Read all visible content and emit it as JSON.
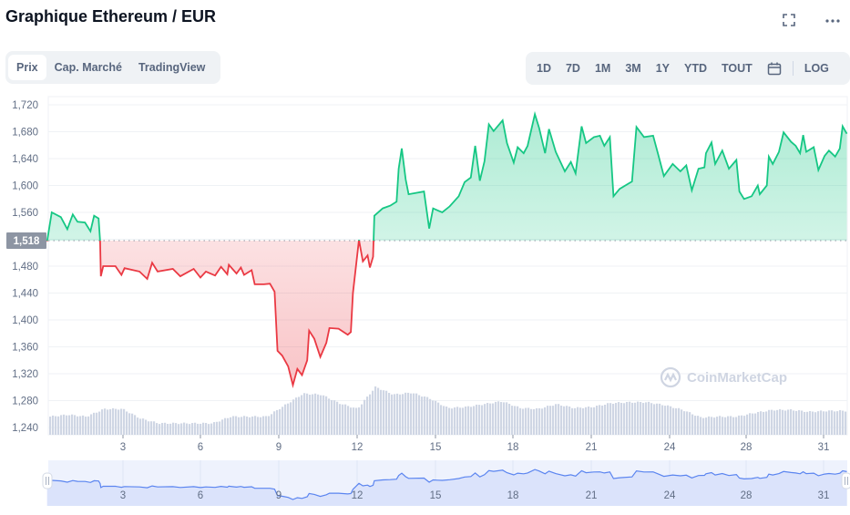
{
  "header": {
    "title": "Graphique Ethereum / EUR",
    "icons": [
      "fullscreen-icon",
      "more-icon"
    ]
  },
  "tabs": [
    {
      "label": "Prix",
      "active": true
    },
    {
      "label": "Cap. Marché"
    },
    {
      "label": "TradingView"
    }
  ],
  "ranges": [
    "1D",
    "7D",
    "1M",
    "3M",
    "1Y",
    "YTD",
    "TOUT"
  ],
  "log_label": "LOG",
  "watermark": "CoinMarketCap",
  "colors": {
    "up": "#16c784",
    "down": "#ea3943",
    "volume": "#cfd6e4",
    "navigator_line": "#5b85f0",
    "navigator_fill": "#dbe3fb",
    "price_label_bg": "#8d95a3"
  },
  "chart_data": {
    "type": "line",
    "title": "",
    "reference_price": 1518,
    "reference_label": "1,518",
    "ylim": [
      1240,
      1720
    ],
    "yticks": [
      1240,
      1280,
      1320,
      1360,
      1400,
      1440,
      1480,
      1520,
      1560,
      1600,
      1640,
      1680,
      1720
    ],
    "ytick_labels": [
      "1,240",
      "1,280",
      "1,320",
      "1,360",
      "1,400",
      "1,440",
      "1,480",
      "",
      "1,560",
      "1,600",
      "1,640",
      "1,680",
      "1,720"
    ],
    "xticks": [
      3,
      6,
      9,
      12,
      15,
      18,
      21,
      24,
      28,
      31
    ],
    "xtick_labels": [
      "3",
      "6",
      "9",
      "12",
      "15",
      "18",
      "21",
      "24",
      "28",
      "31"
    ],
    "grid": true,
    "price": [
      [
        0.08,
        1517
      ],
      [
        0.26,
        1560
      ],
      [
        0.61,
        1553
      ],
      [
        0.86,
        1535
      ],
      [
        1.07,
        1557
      ],
      [
        1.25,
        1546
      ],
      [
        1.54,
        1545
      ],
      [
        1.75,
        1532
      ],
      [
        1.89,
        1555
      ],
      [
        2.06,
        1551
      ],
      [
        2.12,
        1517
      ],
      [
        2.15,
        1465
      ],
      [
        2.24,
        1480
      ],
      [
        2.71,
        1480
      ],
      [
        2.94,
        1467
      ],
      [
        3.06,
        1477
      ],
      [
        3.64,
        1472
      ],
      [
        3.94,
        1461
      ],
      [
        4.13,
        1485
      ],
      [
        4.34,
        1472
      ],
      [
        4.93,
        1476
      ],
      [
        5.22,
        1465
      ],
      [
        5.74,
        1476
      ],
      [
        6.0,
        1463
      ],
      [
        6.21,
        1472
      ],
      [
        6.56,
        1466
      ],
      [
        6.79,
        1479
      ],
      [
        7.03,
        1468
      ],
      [
        7.09,
        1482
      ],
      [
        7.38,
        1469
      ],
      [
        7.55,
        1478
      ],
      [
        7.67,
        1467
      ],
      [
        7.96,
        1474
      ],
      [
        8.08,
        1453
      ],
      [
        8.43,
        1453
      ],
      [
        8.66,
        1454
      ],
      [
        8.84,
        1442
      ],
      [
        8.95,
        1354
      ],
      [
        9.13,
        1347
      ],
      [
        9.36,
        1331
      ],
      [
        9.54,
        1303
      ],
      [
        9.71,
        1327
      ],
      [
        9.89,
        1318
      ],
      [
        10.09,
        1340
      ],
      [
        10.16,
        1384
      ],
      [
        10.36,
        1372
      ],
      [
        10.59,
        1345
      ],
      [
        10.82,
        1366
      ],
      [
        10.94,
        1388
      ],
      [
        11.29,
        1387
      ],
      [
        11.64,
        1378
      ],
      [
        11.76,
        1382
      ],
      [
        11.84,
        1440
      ],
      [
        12.07,
        1519
      ],
      [
        12.22,
        1487
      ],
      [
        12.4,
        1496
      ],
      [
        12.49,
        1478
      ],
      [
        12.61,
        1494
      ],
      [
        12.66,
        1555
      ],
      [
        12.98,
        1566
      ],
      [
        13.27,
        1570
      ],
      [
        13.51,
        1576
      ],
      [
        13.59,
        1625
      ],
      [
        13.71,
        1655
      ],
      [
        13.86,
        1609
      ],
      [
        13.97,
        1587
      ],
      [
        14.56,
        1591
      ],
      [
        14.76,
        1536
      ],
      [
        14.91,
        1566
      ],
      [
        15.08,
        1563
      ],
      [
        15.26,
        1560
      ],
      [
        15.55,
        1569
      ],
      [
        15.9,
        1584
      ],
      [
        16.13,
        1605
      ],
      [
        16.37,
        1612
      ],
      [
        16.54,
        1659
      ],
      [
        16.72,
        1607
      ],
      [
        16.9,
        1636
      ],
      [
        17.07,
        1691
      ],
      [
        17.25,
        1681
      ],
      [
        17.6,
        1697
      ],
      [
        17.77,
        1663
      ],
      [
        18.03,
        1634
      ],
      [
        18.18,
        1657
      ],
      [
        18.41,
        1648
      ],
      [
        18.56,
        1659
      ],
      [
        18.84,
        1706
      ],
      [
        19.0,
        1686
      ],
      [
        19.23,
        1648
      ],
      [
        19.38,
        1684
      ],
      [
        19.64,
        1650
      ],
      [
        19.99,
        1621
      ],
      [
        20.22,
        1635
      ],
      [
        20.4,
        1618
      ],
      [
        20.63,
        1688
      ],
      [
        20.8,
        1663
      ],
      [
        21.1,
        1672
      ],
      [
        21.33,
        1674
      ],
      [
        21.5,
        1659
      ],
      [
        21.71,
        1672
      ],
      [
        21.85,
        1584
      ],
      [
        22.09,
        1595
      ],
      [
        22.56,
        1606
      ],
      [
        22.73,
        1687
      ],
      [
        23.02,
        1672
      ],
      [
        23.37,
        1674
      ],
      [
        23.55,
        1648
      ],
      [
        23.78,
        1614
      ],
      [
        24.16,
        1632
      ],
      [
        24.56,
        1621
      ],
      [
        24.87,
        1630
      ],
      [
        25.16,
        1593
      ],
      [
        25.51,
        1625
      ],
      [
        25.82,
        1627
      ],
      [
        25.9,
        1648
      ],
      [
        26.19,
        1664
      ],
      [
        26.38,
        1632
      ],
      [
        26.75,
        1652
      ],
      [
        27.1,
        1625
      ],
      [
        27.49,
        1638
      ],
      [
        27.65,
        1591
      ],
      [
        27.89,
        1580
      ],
      [
        28.21,
        1584
      ],
      [
        28.45,
        1600
      ],
      [
        28.53,
        1587
      ],
      [
        28.8,
        1600
      ],
      [
        28.88,
        1643
      ],
      [
        29.03,
        1632
      ],
      [
        29.27,
        1650
      ],
      [
        29.45,
        1679
      ],
      [
        29.74,
        1665
      ],
      [
        29.92,
        1659
      ],
      [
        30.09,
        1648
      ],
      [
        30.21,
        1675
      ],
      [
        30.33,
        1650
      ],
      [
        30.62,
        1657
      ],
      [
        30.8,
        1623
      ],
      [
        31.04,
        1644
      ],
      [
        31.21,
        1652
      ],
      [
        31.45,
        1643
      ],
      [
        31.63,
        1655
      ],
      [
        31.74,
        1688
      ],
      [
        31.9,
        1677
      ]
    ],
    "volume_relative": [
      19,
      21,
      19,
      27,
      27,
      17,
      12,
      12,
      12,
      12,
      19,
      19,
      19,
      31,
      43,
      42,
      33,
      27,
      50,
      42,
      44,
      38,
      28,
      29,
      32,
      35,
      28,
      27,
      32,
      28,
      29,
      33,
      34,
      34,
      31,
      26,
      18,
      19,
      19,
      23,
      26,
      26,
      24,
      25,
      25
    ]
  }
}
